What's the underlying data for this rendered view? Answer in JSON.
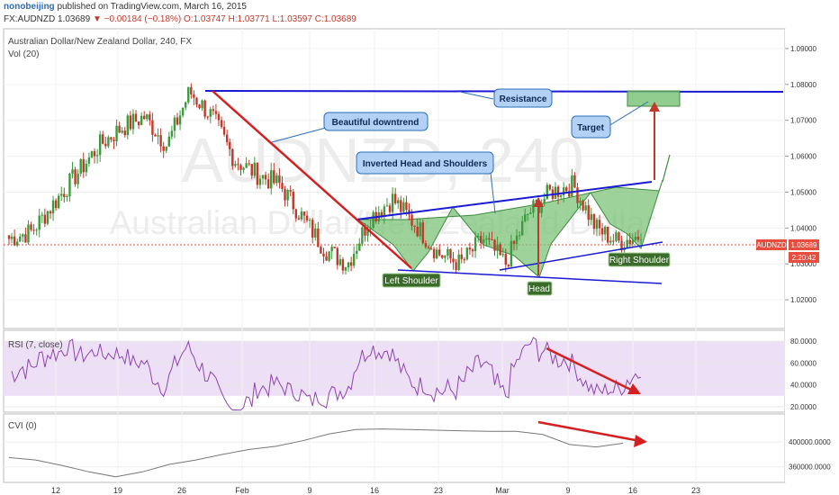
{
  "header": {
    "username": "nonobeijing",
    "published_text": "published on TradingView.com, March 16, 2015",
    "symbol_prefix": "FX:AUDNZD",
    "last": "1.03689",
    "change": "▼ −0.00184 (−0.18%)",
    "ohlc": "O:1.03747 H:1.03771 L:1.03597 C:1.03689"
  },
  "pane_titles": {
    "main": "Australian Dollar/New Zealand Dollar, 240, FX",
    "volume": "Vol (20)",
    "rsi": "RSI (7, close)",
    "cvi": "CVI (0)"
  },
  "watermark": {
    "symbol": "AUDNZD, 240",
    "name": "Australian Dollar/New Zealand Dollar"
  },
  "price_axis": {
    "ticks": [
      "1.09000",
      "1.08000",
      "1.07000",
      "1.06000",
      "1.05000",
      "1.04000",
      "1.03000",
      "1.02000"
    ],
    "current_label": "AUDNZD",
    "current_value": "1.03689",
    "countdown": "2:20:42"
  },
  "rsi_axis": {
    "ticks": [
      "80.0000",
      "60.0000",
      "40.0000",
      "20.0000"
    ]
  },
  "cvi_axis": {
    "ticks": [
      "400000.0000",
      "360000.0000"
    ]
  },
  "time_axis": {
    "ticks": [
      "12",
      "19",
      "26",
      "Feb",
      "9",
      "16",
      "23",
      "Mar",
      "9",
      "16",
      "23"
    ]
  },
  "annotations": {
    "downtrend": "Beautiful downtrend",
    "resistance": "Resistance",
    "target": "Target",
    "pattern": "Inverted Head and Shoulders",
    "left_shoulder": "Left Shoulder",
    "head": "Head",
    "right_shoulder": "Right Shoulder"
  },
  "colors": {
    "candle_up": "#3c9a3c",
    "candle_down": "#c0392b",
    "trendline": "#d42020",
    "resistance_line": "#1a1ad4",
    "pattern_fill": "#7cc47a",
    "callout_fill": "#b3d1f5",
    "rsi_line": "#8e44ad",
    "rsi_band": "#eddff5",
    "current_price_tag": "#e74c3c"
  },
  "chart_data": [
    {
      "type": "candlestick",
      "title": "Australian Dollar/New Zealand Dollar, 240, FX",
      "ylim": [
        1.012,
        1.0955
      ],
      "ticks": [
        "12",
        "19",
        "26",
        "Feb",
        "9",
        "16",
        "23",
        "Mar",
        "9",
        "16",
        "23"
      ],
      "anchors": [
        1.037,
        1.039,
        1.047,
        1.055,
        1.063,
        1.068,
        1.071,
        1.063,
        1.078,
        1.071,
        1.059,
        1.055,
        1.052,
        1.043,
        1.034,
        1.03,
        1.043,
        1.048,
        1.041,
        1.033,
        1.03,
        1.037,
        1.03,
        1.044,
        1.05,
        1.052,
        1.04,
        1.036,
        1.038
      ],
      "last": 1.03689,
      "levels": {
        "resistance": 1.079,
        "target": 1.078
      }
    },
    {
      "type": "line",
      "title": "RSI (7, close)",
      "ylim": [
        15,
        90
      ],
      "ticks": [
        "80.0000",
        "60.0000",
        "40.0000",
        "20.0000"
      ],
      "band": [
        30,
        80
      ]
    },
    {
      "type": "line",
      "title": "CVI (0)",
      "ylim": [
        335000,
        445000
      ],
      "ticks": [
        "400000.0000",
        "360000.0000"
      ],
      "values": [
        375000,
        371000,
        362000,
        352000,
        344000,
        352000,
        364000,
        371000,
        380000,
        388000,
        393000,
        402000,
        413000,
        420000,
        421000,
        420000,
        419000,
        418000,
        417000,
        417000,
        412000,
        396000,
        392000,
        398000
      ]
    }
  ]
}
